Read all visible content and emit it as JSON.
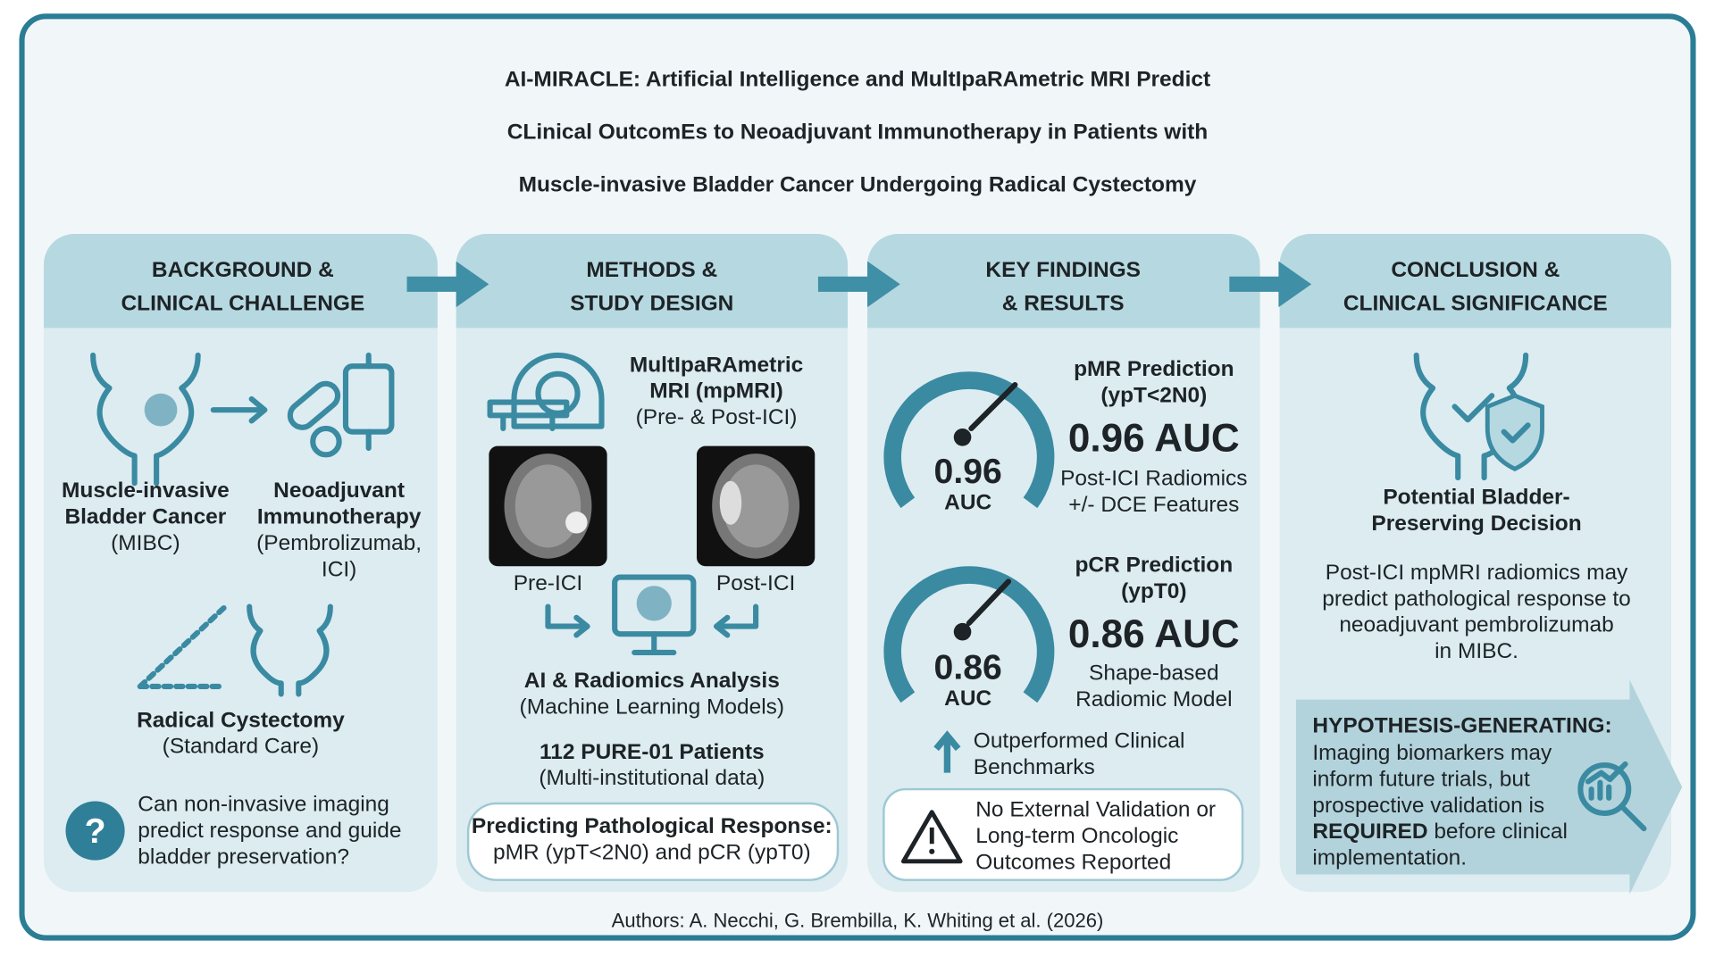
{
  "title": [
    "AI-MIRACLE: Artificial Intelligence and MultIpaRAmetric MRI Predict",
    "CLinical OutcomEs to Neoadjuvant Immunotherapy in Patients with",
    "Muscle-invasive Bladder Cancer Undergoing Radical Cystectomy"
  ],
  "panels": [
    {
      "heading": [
        "BACKGROUND &",
        "CLINICAL CHALLENGE"
      ],
      "disease": {
        "name": [
          "Muscle-invasive",
          "Bladder Cancer"
        ],
        "note": [
          "(MIBC)"
        ]
      },
      "therapy": {
        "name": [
          "Neoadjuvant",
          "Immunotherapy"
        ],
        "note": [
          "(Pembrolizumab,",
          "ICI)"
        ]
      },
      "surgery": {
        "name": "Radical Cystectomy",
        "note": "(Standard Care)"
      },
      "question": [
        "Can non-invasive imaging",
        "predict response and guide",
        "bladder preservation?"
      ]
    },
    {
      "heading": [
        "METHODS &",
        "STUDY DESIGN"
      ],
      "imaging": {
        "name": [
          "MultIpaRAmetric",
          "MRI (mpMRI)"
        ],
        "note": "(Pre- & Post-ICI)"
      },
      "scans": [
        "Pre-ICI",
        "Post-ICI"
      ],
      "analysis": {
        "name": "AI & Radiomics Analysis",
        "note": "(Machine Learning Models)"
      },
      "cohort": {
        "name": "112 PURE-01 Patients",
        "note": "(Multi-institutional data)"
      },
      "endpoints": [
        "Predicting Pathological Response:",
        "pMR (ypT<2N0) and pCR (ypT0)"
      ]
    },
    {
      "heading": [
        "KEY FINDINGS",
        "& RESULTS"
      ],
      "findings": [
        {
          "gauge_value": 0.96,
          "gauge_label": "AUC",
          "title": [
            "pMR Prediction",
            "(ypT<2N0)"
          ],
          "result": "0.96 AUC",
          "detail": [
            "Post-ICI Radiomics",
            "+/- DCE Features"
          ]
        },
        {
          "gauge_value": 0.86,
          "gauge_label": "AUC",
          "title": [
            "pCR Prediction",
            "(ypT0)"
          ],
          "result": "0.86 AUC",
          "detail": [
            "Shape-based",
            "Radiomic Model"
          ]
        }
      ],
      "benchmark": [
        "Outperformed Clinical",
        "Benchmarks"
      ],
      "limitation": [
        "No External Validation or",
        "Long-term Oncologic",
        "Outcomes Reported"
      ]
    },
    {
      "heading": [
        "CONCLUSION &",
        "CLINICAL SIGNIFICANCE"
      ],
      "decision": [
        "Potential Bladder-",
        "Preserving Decision"
      ],
      "summary": [
        "Post-ICI mpMRI radiomics may",
        "predict pathological response to",
        "neoadjuvant pembrolizumab",
        "in MIBC."
      ],
      "hypothesis": {
        "heading": "HYPOTHESIS-GENERATING:",
        "lines": [
          "Imaging biomarkers may",
          "inform future trials, but",
          "prospective validation is"
        ],
        "emphasis": "REQUIRED",
        "after_emphasis": " before clinical",
        "last": "implementation."
      }
    }
  ],
  "footer": "Authors: A. Necchi, G. Brembilla, K. Whiting et al. (2026)"
}
